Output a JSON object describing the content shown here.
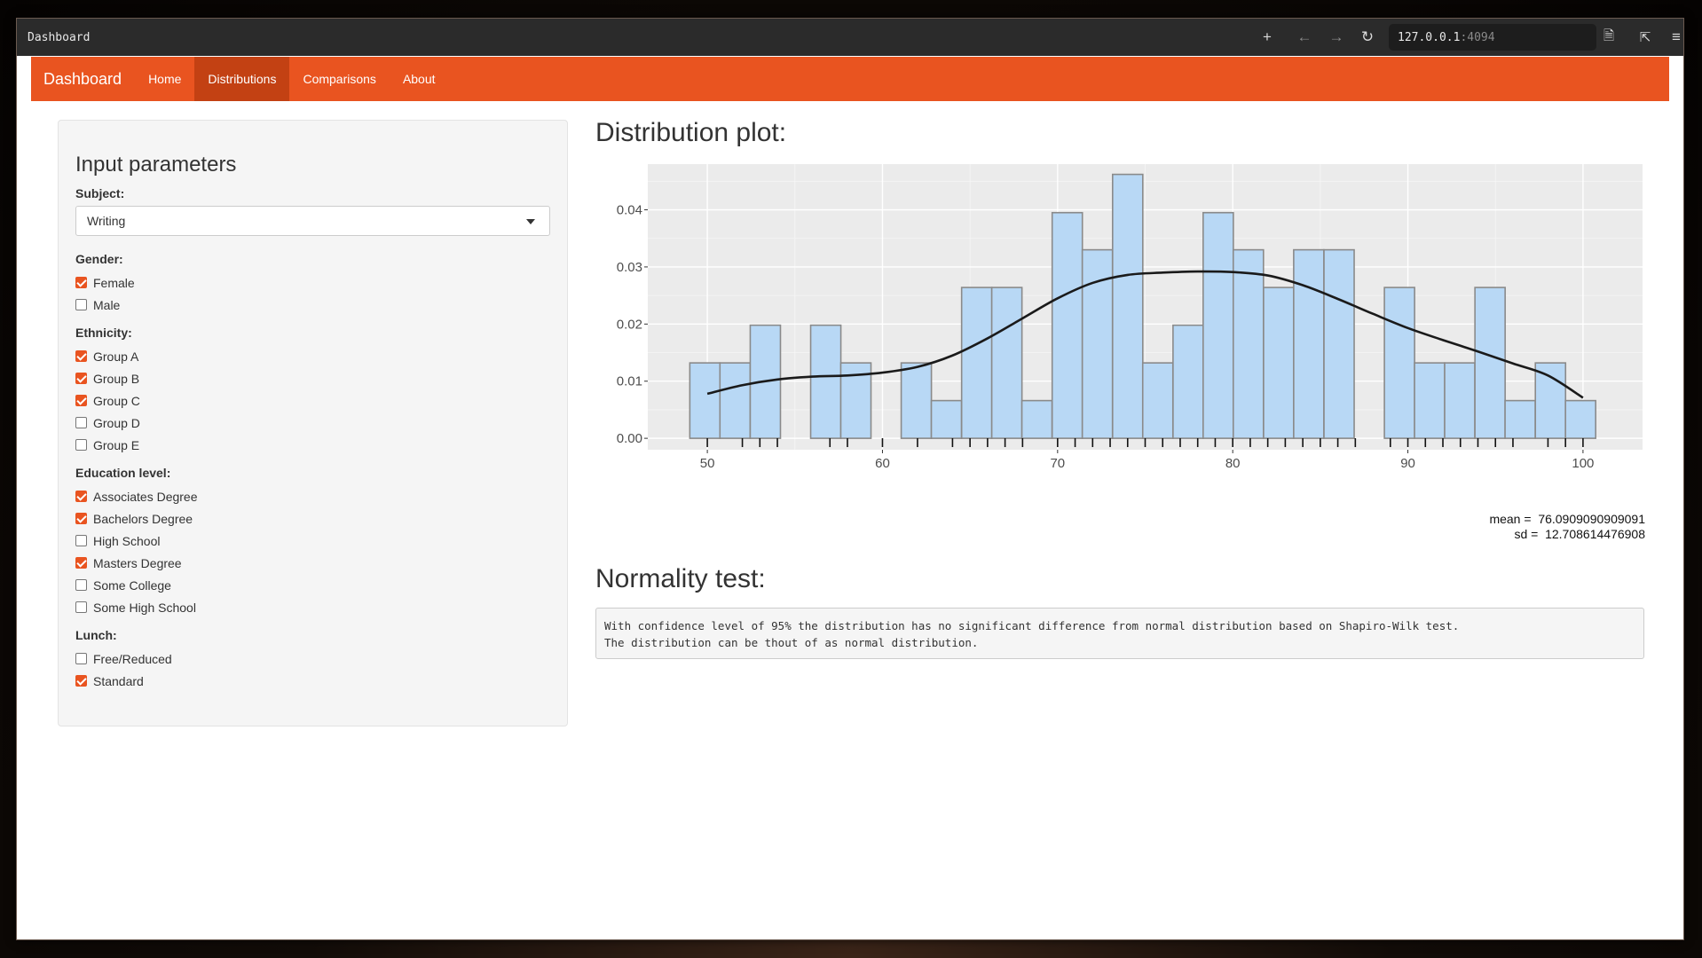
{
  "window": {
    "title": "Dashboard",
    "url_host": "127.0.0.1",
    "url_port": ":4094"
  },
  "navbar": {
    "brand": "Dashboard",
    "items": [
      {
        "label": "Home",
        "active": false
      },
      {
        "label": "Distributions",
        "active": true
      },
      {
        "label": "Comparisons",
        "active": false
      },
      {
        "label": "About",
        "active": false
      }
    ]
  },
  "sidebar": {
    "title": "Input parameters",
    "subject": {
      "label": "Subject:",
      "value": "Writing"
    },
    "gender": {
      "label": "Gender:",
      "options": [
        {
          "label": "Female",
          "checked": true
        },
        {
          "label": "Male",
          "checked": false
        }
      ]
    },
    "ethnicity": {
      "label": "Ethnicity:",
      "options": [
        {
          "label": "Group A",
          "checked": true
        },
        {
          "label": "Group B",
          "checked": true
        },
        {
          "label": "Group C",
          "checked": true
        },
        {
          "label": "Group D",
          "checked": false
        },
        {
          "label": "Group E",
          "checked": false
        }
      ]
    },
    "education": {
      "label": "Education level:",
      "options": [
        {
          "label": "Associates Degree",
          "checked": true
        },
        {
          "label": "Bachelors Degree",
          "checked": true
        },
        {
          "label": "High School",
          "checked": false
        },
        {
          "label": "Masters Degree",
          "checked": true
        },
        {
          "label": "Some College",
          "checked": false
        },
        {
          "label": "Some High School",
          "checked": false
        }
      ]
    },
    "lunch": {
      "label": "Lunch:",
      "options": [
        {
          "label": "Free/Reduced",
          "checked": false
        },
        {
          "label": "Standard",
          "checked": true
        }
      ]
    }
  },
  "main": {
    "distribution_title": "Distribution plot:",
    "stats": {
      "mean_label": "mean = ",
      "mean": "76.0909090909091",
      "sd_label": "sd = ",
      "sd": "12.708614476908"
    },
    "normality_title": "Normality test:",
    "normality_lines": [
      "With confidence level of 95% the distribution has no significant difference from normal distribution based on Shapiro-Wilk test.",
      "The distribution can be thout of as normal distribution."
    ]
  },
  "chart_data": {
    "type": "bar",
    "bin_width": 1.724,
    "bin_starts": [
      49.0,
      50.72,
      52.45,
      54.17,
      55.9,
      57.62,
      59.34,
      61.07,
      62.79,
      64.52,
      66.24,
      67.96,
      69.69,
      71.41,
      73.14,
      74.86,
      76.59,
      78.31,
      80.03,
      81.76,
      83.48,
      85.21,
      86.93,
      88.66,
      90.38,
      92.1,
      93.83,
      95.55,
      97.28,
      99.0
    ],
    "values": [
      0.0132,
      0.0132,
      0.0198,
      0.0,
      0.0198,
      0.0132,
      0.0,
      0.0132,
      0.0066,
      0.0264,
      0.0264,
      0.0066,
      0.0395,
      0.033,
      0.0462,
      0.0132,
      0.0198,
      0.0395,
      0.033,
      0.0264,
      0.033,
      0.033,
      0.0,
      0.0264,
      0.0132,
      0.0132,
      0.0264,
      0.0066,
      0.0132,
      0.0066
    ],
    "density_curve": {
      "x": [
        50,
        52,
        54,
        56,
        58,
        60,
        62,
        64,
        66,
        68,
        70,
        72,
        74,
        76,
        78,
        80,
        82,
        84,
        86,
        88,
        90,
        92,
        94,
        96,
        98,
        100
      ],
      "y": [
        0.0078,
        0.0093,
        0.0103,
        0.0108,
        0.011,
        0.0115,
        0.0125,
        0.0145,
        0.0175,
        0.021,
        0.0245,
        0.0272,
        0.0286,
        0.029,
        0.0292,
        0.0291,
        0.0285,
        0.0268,
        0.0244,
        0.0218,
        0.0193,
        0.0172,
        0.0152,
        0.0131,
        0.011,
        0.0071
      ]
    },
    "rug": [
      50,
      52,
      53,
      54,
      57,
      58,
      60,
      62,
      64,
      65,
      66,
      67,
      68,
      70,
      71,
      72,
      73,
      74,
      75,
      76,
      77,
      78,
      79,
      80,
      81,
      82,
      83,
      84,
      85,
      86,
      87,
      89,
      90,
      91,
      92,
      93,
      94,
      95,
      96,
      98,
      99,
      100
    ],
    "xlim": [
      46.6,
      103.4
    ],
    "ylim": [
      -0.002,
      0.048
    ],
    "x_ticks": [
      50,
      60,
      70,
      80,
      90,
      100
    ],
    "y_ticks": [
      0.0,
      0.01,
      0.02,
      0.03,
      0.04
    ],
    "x_tick_labels": [
      "50",
      "60",
      "70",
      "80",
      "90",
      "100"
    ],
    "y_tick_labels": [
      "0.00",
      "0.01",
      "0.02",
      "0.03",
      "0.04"
    ],
    "colors": {
      "panel": "#ebebeb",
      "bar_fill": "#b8d8f5",
      "bar_stroke": "#8a8a8a",
      "curve": "#1a1a1a"
    }
  }
}
